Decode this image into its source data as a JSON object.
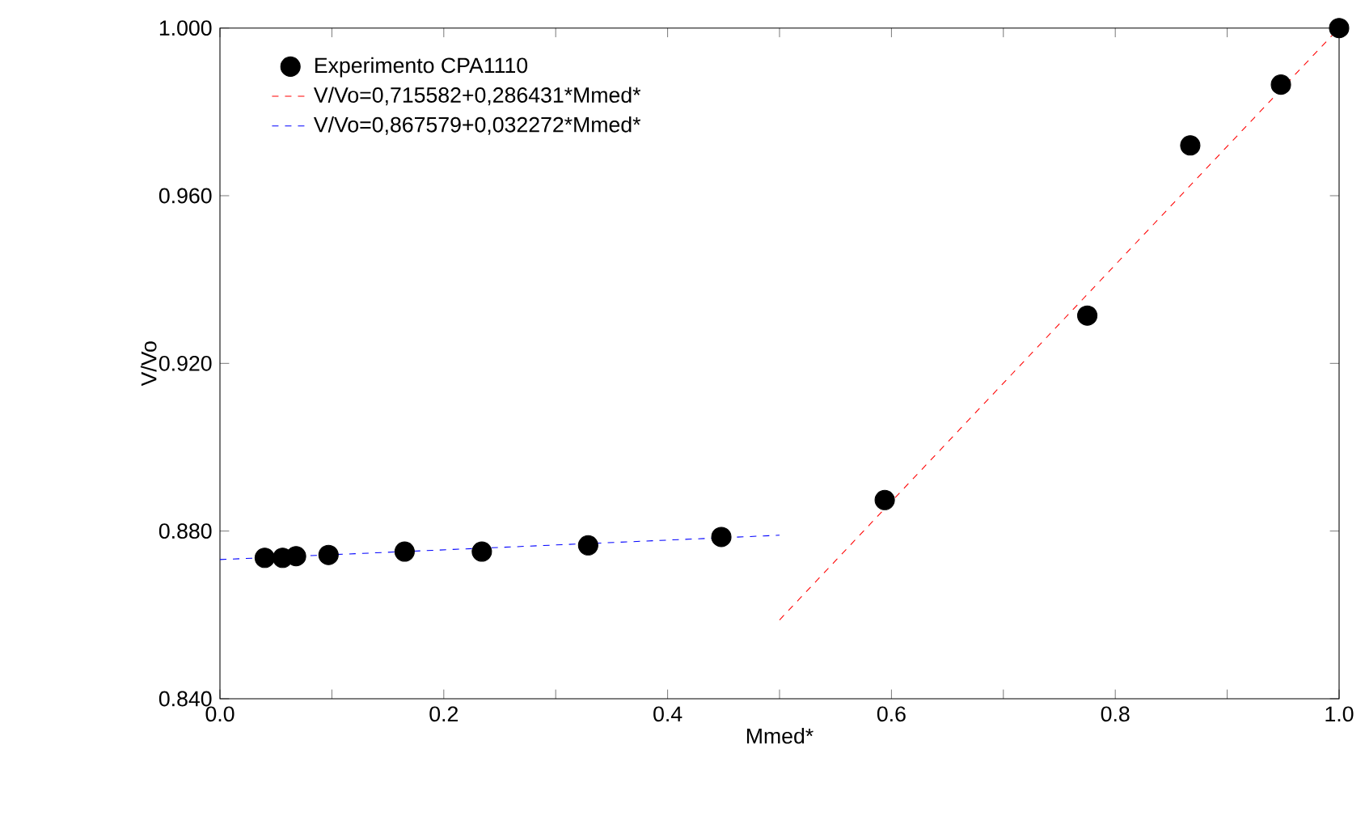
{
  "chart_data": {
    "type": "scatter",
    "xlabel": "Mmed*",
    "ylabel": "V/Vo",
    "xlim": [
      0,
      1
    ],
    "ylim": [
      0.84,
      1.0
    ],
    "xticks": [
      {
        "value": 0,
        "label": "0.0"
      },
      {
        "value": 0.1,
        "label": null
      },
      {
        "value": 0.2,
        "label": "0.2"
      },
      {
        "value": 0.3,
        "label": null
      },
      {
        "value": 0.4,
        "label": "0.4"
      },
      {
        "value": 0.5,
        "label": null
      },
      {
        "value": 0.6,
        "label": "0.6"
      },
      {
        "value": 0.7,
        "label": null
      },
      {
        "value": 0.8,
        "label": "0.8"
      },
      {
        "value": 0.9,
        "label": null
      },
      {
        "value": 1,
        "label": "1.0"
      }
    ],
    "yticks": [
      {
        "value": 0.84,
        "label": "0.840"
      },
      {
        "value": 0.88,
        "label": "0.880"
      },
      {
        "value": 0.92,
        "label": "0.920"
      },
      {
        "value": 0.96,
        "label": "0.960"
      },
      {
        "value": 1.0,
        "label": "1.000"
      }
    ],
    "legend": "top left",
    "grid": false,
    "series": [
      {
        "name": "Experimento CPA1110",
        "marker": "circle",
        "color": "#000000",
        "x": [
          0.04,
          0.056,
          0.068,
          0.097,
          0.165,
          0.234,
          0.329,
          0.448,
          0.594,
          0.775,
          0.867,
          0.948,
          1.0
        ],
        "values": [
          0.8736,
          0.8736,
          0.874,
          0.8743,
          0.8751,
          0.8751,
          0.8766,
          0.8786,
          0.8874,
          0.9314,
          0.972,
          0.9865,
          1.0
        ]
      },
      {
        "name": "V/Vo=0,715582+0,286431*Mmed*",
        "type": "line",
        "line_style": "dashed",
        "marker": "none",
        "color": "#ff0000",
        "x": [
          0.5,
          1.0
        ],
        "values": [
          0.8588,
          1.0
        ]
      },
      {
        "name": "V/Vo=0,867579+0,032272*Mmed*",
        "type": "line",
        "line_style": "dashed",
        "marker": "none",
        "color": "#0000ff",
        "x": [
          0,
          0.5
        ],
        "values": [
          0.8732,
          0.879
        ]
      }
    ]
  }
}
